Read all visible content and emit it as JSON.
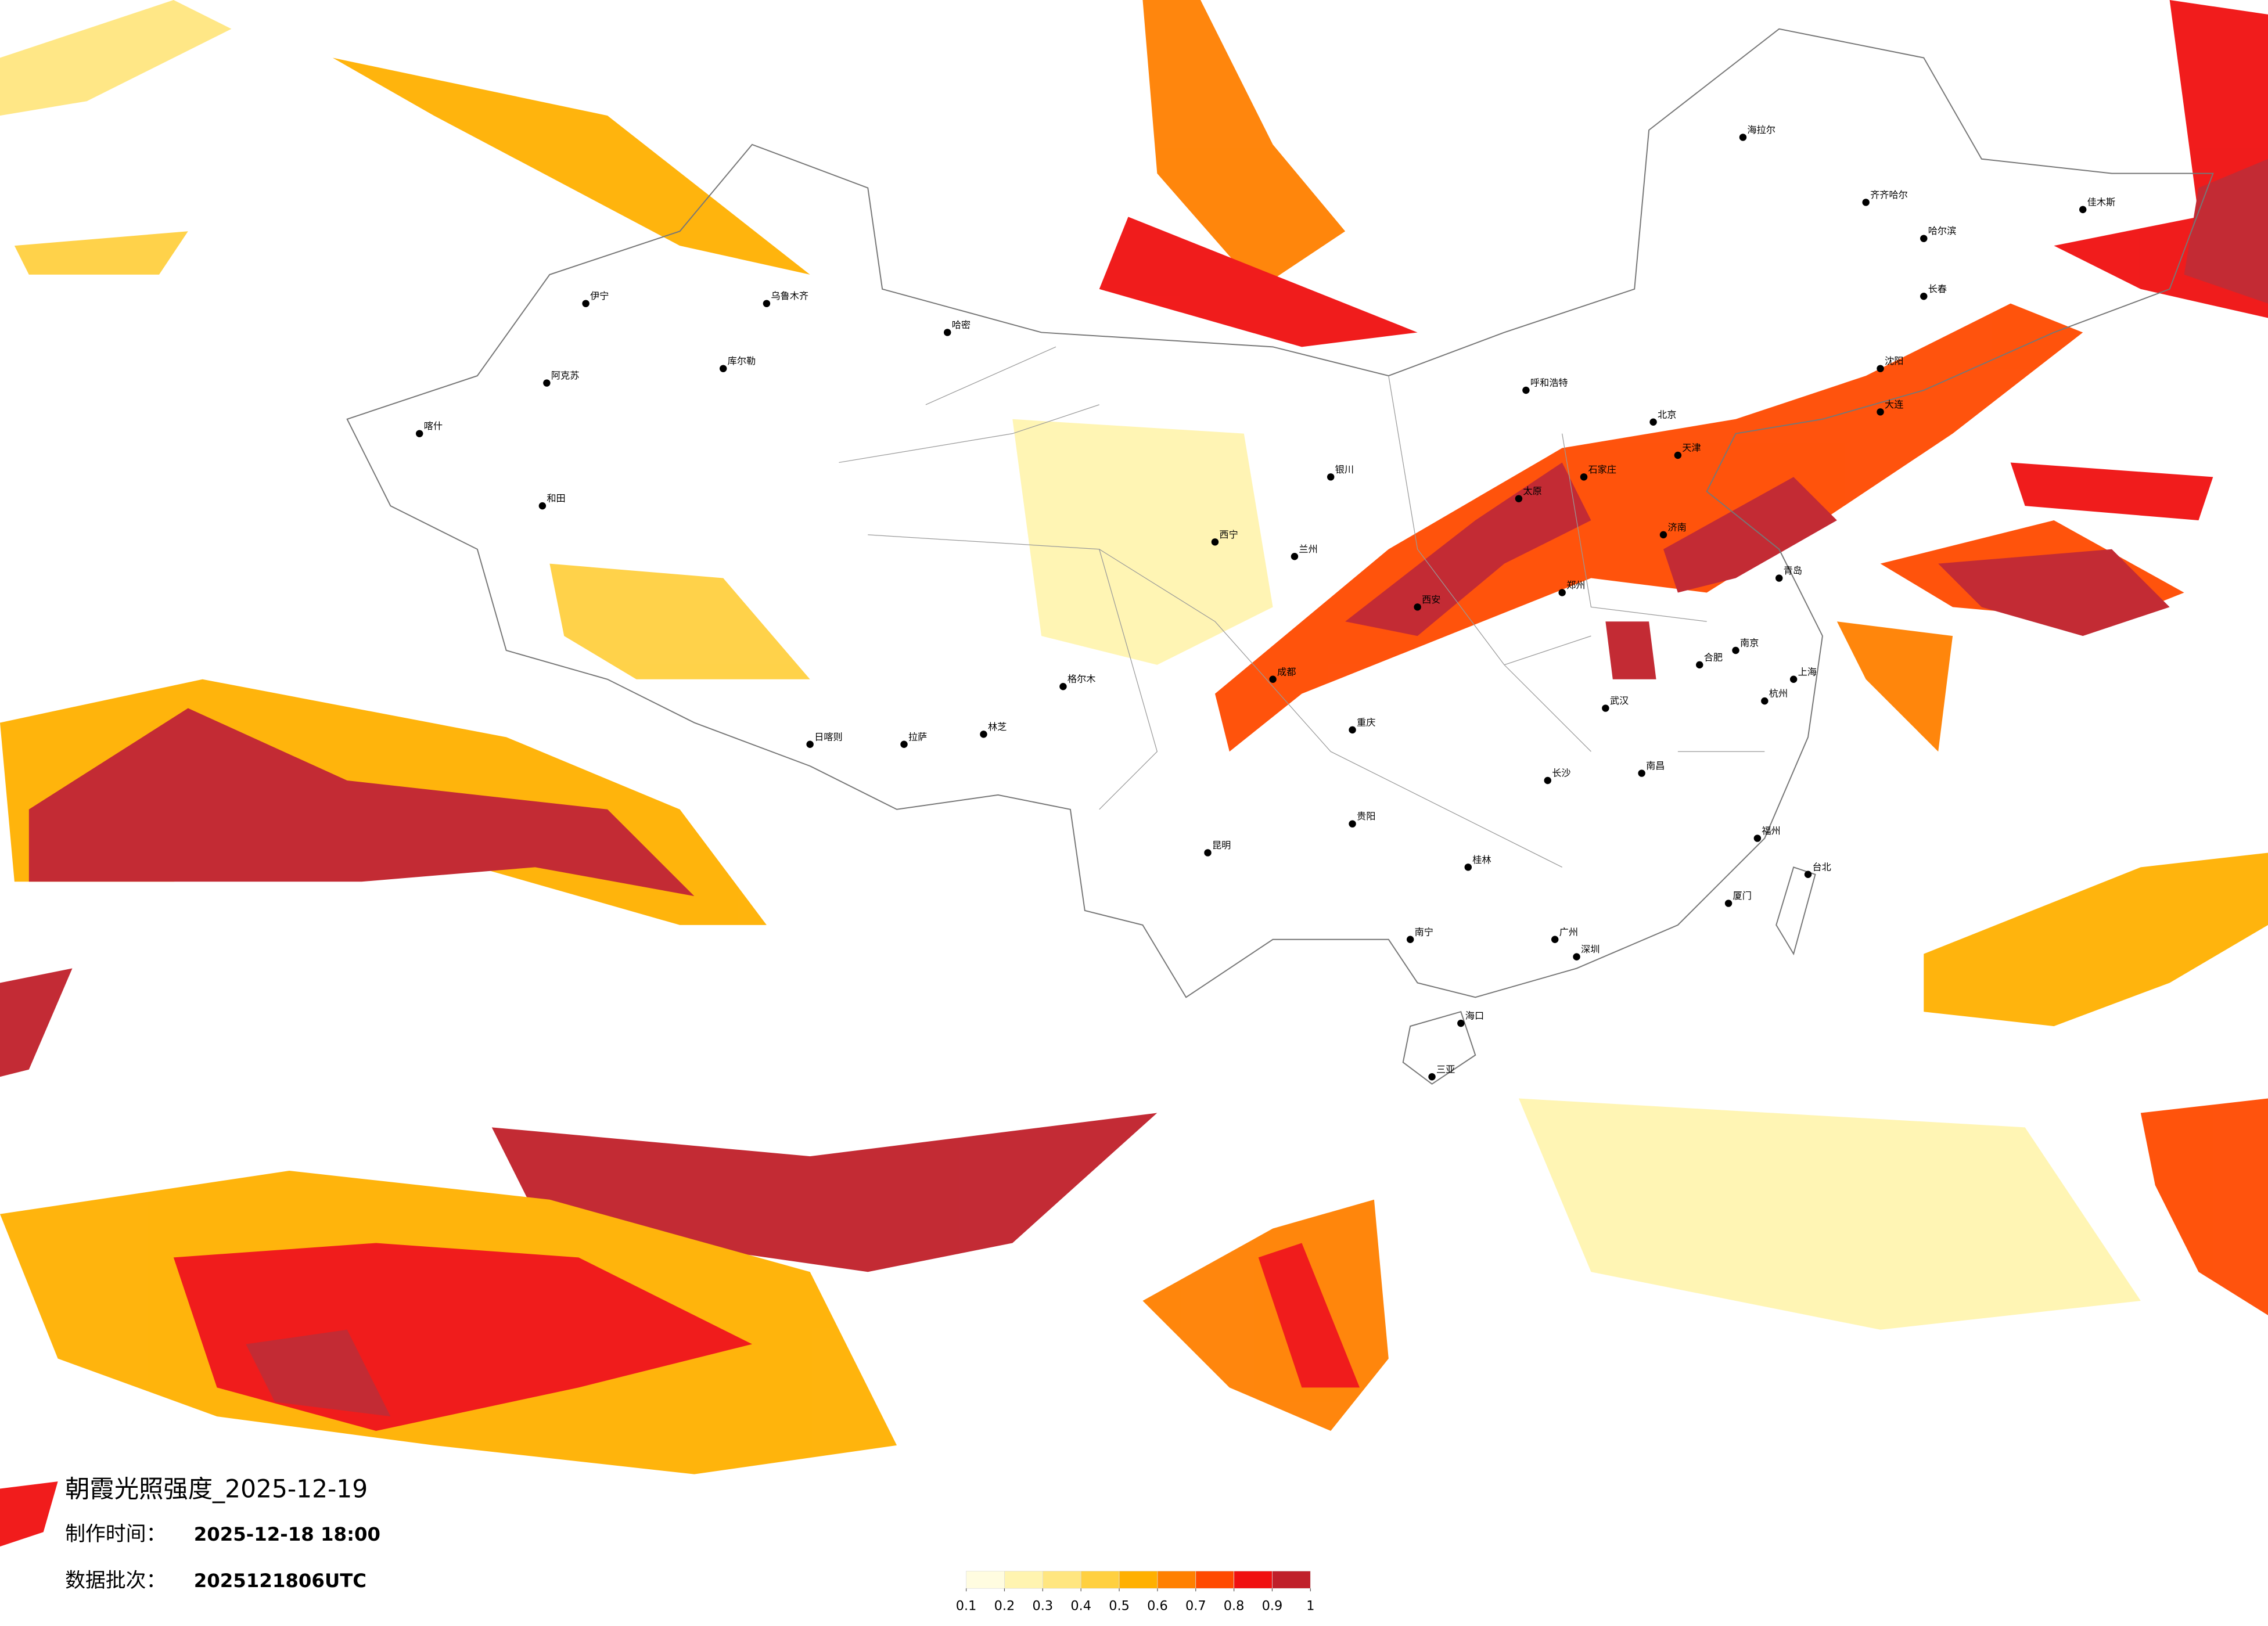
{
  "title": "朝霞光照强度_2025-12-19",
  "made_label": "制作时间：",
  "made_time": "2025-12-18 18:00",
  "batch_label": "数据批次：",
  "batch": "2025121806UTC",
  "colorbar": {
    "colors": [
      "#fffce0",
      "#fff4b0",
      "#ffe680",
      "#ffd040",
      "#ffb000",
      "#ff8000",
      "#ff4a00",
      "#f01010",
      "#c0202a"
    ],
    "ticks": [
      0.1,
      0.2,
      0.3,
      0.4,
      0.5,
      0.6,
      0.7,
      0.8,
      0.9,
      1
    ]
  },
  "cities": [
    "北京",
    "天津",
    "上海",
    "广州",
    "深圳",
    "重庆",
    "成都",
    "武汉",
    "西安",
    "郑州",
    "南京",
    "杭州",
    "长沙",
    "哈尔滨",
    "长春",
    "沈阳",
    "济南",
    "太原",
    "石家庄",
    "呼和浩特",
    "兰州",
    "西宁",
    "银川",
    "乌鲁木齐",
    "拉萨",
    "昆明",
    "贵阳",
    "南宁",
    "海口",
    "福州",
    "南昌",
    "合肥",
    "台北",
    "喀什",
    "和田",
    "伊宁",
    "哈密",
    "格尔木",
    "海拉尔",
    "齐齐哈尔",
    "库尔勒",
    "阿克苏",
    "日喀则",
    "林芝",
    "大连",
    "青岛",
    "厦门",
    "桂林",
    "三亚",
    "佳木斯"
  ]
}
